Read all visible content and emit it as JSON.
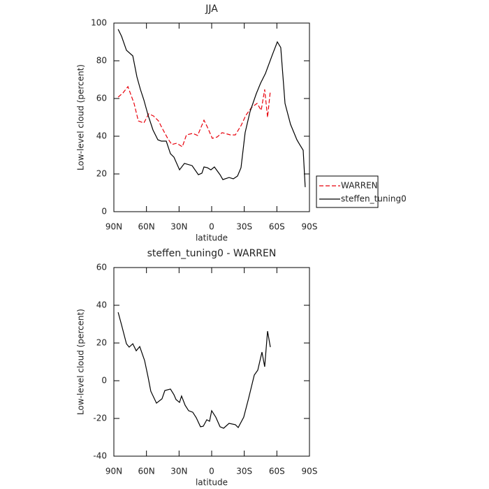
{
  "chart_data": [
    {
      "type": "line",
      "title": "JJA",
      "x_label": "latitude",
      "y_label": "Low-level cloud (percent)",
      "xlim": [
        90,
        -90
      ],
      "ylim": [
        0,
        100
      ],
      "xticks": [
        {
          "value": 90,
          "label": "90N"
        },
        {
          "value": 60,
          "label": "60N"
        },
        {
          "value": 30,
          "label": "30N"
        },
        0,
        {
          "value": -30,
          "label": "30S"
        },
        {
          "value": -60,
          "label": "60S"
        },
        {
          "value": -90,
          "label": "90S"
        }
      ],
      "yticks": [
        0,
        20,
        40,
        60,
        80,
        100
      ],
      "legend": "right",
      "series": [
        {
          "name": "WARREN",
          "color": "#e8000b",
          "dashed": true,
          "x": [
            86.1,
            81.6,
            77.1,
            71.4,
            67.5,
            62.4,
            57.9,
            53.4,
            48.9,
            45.7,
            40.5,
            36.7,
            32.2,
            27,
            23.2,
            17.4,
            12.9,
            7.1,
            3.9,
            -0.6,
            -5.1,
            -9.6,
            -17.3,
            -21.8,
            -27,
            -31.5,
            -36.6,
            -41.8,
            -45.6,
            -48.8,
            -51.4,
            -54
          ],
          "values": [
            60.7,
            63,
            66.3,
            57.4,
            48.1,
            47,
            51.9,
            50.7,
            48.1,
            44.4,
            38.9,
            35.6,
            36.3,
            34.4,
            40.7,
            41.5,
            40.4,
            48.5,
            44.8,
            38.9,
            39.6,
            41.9,
            40.7,
            40.7,
            45.6,
            51.1,
            55.2,
            57.4,
            53.7,
            64.8,
            50,
            64.1
          ]
        },
        {
          "name": "steffen_tuning0",
          "color": "#000000",
          "dashed": false,
          "x": [
            86.1,
            82.9,
            78.4,
            72.6,
            68.8,
            65.6,
            62.4,
            58.5,
            54,
            49.5,
            46.3,
            41.8,
            37.9,
            34.7,
            29.6,
            25.1,
            18,
            12.2,
            9,
            7.1,
            3.9,
            0.7,
            -2.5,
            -7.7,
            -10.3,
            -16,
            -19.9,
            -23.8,
            -27,
            -30.8,
            -35.3,
            -41.1,
            -45,
            -49.5,
            -55.9,
            -60.4,
            -63.6,
            -67.5,
            -72.6,
            -78.4,
            -81,
            -84.2,
            -86.1
          ],
          "values": [
            96.7,
            93,
            85.6,
            82.6,
            71.5,
            64.8,
            59.3,
            51.1,
            43.3,
            38.1,
            37.4,
            37.4,
            30.7,
            28.9,
            22.2,
            25.6,
            24.4,
            19.6,
            20.4,
            23.7,
            23.3,
            22.2,
            23.7,
            19.6,
            17,
            18.1,
            17.4,
            18.9,
            23.3,
            41.9,
            53,
            62.6,
            68.1,
            73.3,
            83.3,
            90,
            87,
            57.4,
            46.3,
            38.1,
            35.6,
            32.6,
            13
          ]
        }
      ]
    },
    {
      "type": "line",
      "title": "steffen_tuning0 - WARREN",
      "x_label": "latitude",
      "y_label": "Low-level cloud (percent)",
      "xlim": [
        90,
        -90
      ],
      "ylim": [
        -40,
        60
      ],
      "xticks": [
        {
          "value": 90,
          "label": "90N"
        },
        {
          "value": 60,
          "label": "60N"
        },
        {
          "value": 30,
          "label": "30N"
        },
        0,
        {
          "value": -30,
          "label": "30S"
        },
        {
          "value": -60,
          "label": "60S"
        },
        {
          "value": -90,
          "label": "90S"
        }
      ],
      "yticks": [
        -40,
        -20,
        0,
        20,
        40,
        60
      ],
      "series": [
        {
          "color": "#000000",
          "dashed": false,
          "x": [
            86.1,
            82.9,
            78.4,
            75.9,
            72.6,
            69.4,
            66.2,
            61.7,
            58.5,
            56,
            50.8,
            45.7,
            43.1,
            37.9,
            34.7,
            32.8,
            29.6,
            27.7,
            24.4,
            21.2,
            17.4,
            14.2,
            10.3,
            7.7,
            4.5,
            1.9,
            0,
            -3.8,
            -7.7,
            -11,
            -16,
            -21.8,
            -24.4,
            -29.5,
            -34,
            -39.2,
            -42.4,
            -46.3,
            -48.8,
            -51.4,
            -54
          ],
          "values": [
            36.3,
            29.6,
            19.6,
            17.8,
            19.6,
            15.9,
            18.1,
            10.7,
            1.9,
            -5.6,
            -11.9,
            -9.6,
            -5.2,
            -4.4,
            -7.4,
            -10,
            -11.5,
            -8.1,
            -13,
            -15.9,
            -16.7,
            -19.6,
            -24.4,
            -24.1,
            -20.7,
            -21.5,
            -15.9,
            -19.3,
            -24.4,
            -25.2,
            -22.6,
            -23.3,
            -24.8,
            -19.3,
            -9.3,
            3,
            5.6,
            15.2,
            7.4,
            26.3,
            17.8
          ]
        }
      ]
    }
  ]
}
